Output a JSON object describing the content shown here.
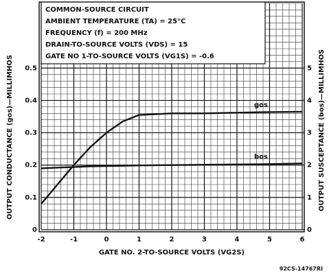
{
  "chart_data": {
    "type": "line",
    "header": [
      "COMMON-SOURCE CIRCUIT",
      "AMBIENT TEMPERATURE (TA) = 25°C",
      "FREQUENCY (f) = 200 MHz",
      "DRAIN-TO-SOURCE VOLTS (VDS) = 15",
      "GATE NO 1-TO-SOURCE VOLTS (VG1S) = -0.6"
    ],
    "x_label": "GATE NO. 2-TO-SOURCE VOLTS (VG2S)",
    "y_label": "OUTPUT CONDUCTANCE (gos)—MILLIMHOS",
    "y2_label": "OUTPUT SUSCEPTANCE (bos)—MILLIMHOS",
    "code": "92CS-14767RI",
    "x": [
      -2,
      -1.5,
      -1,
      -0.5,
      0,
      0.5,
      1,
      2,
      3,
      4,
      5,
      6
    ],
    "series": [
      {
        "name": "gos",
        "color": "#111111",
        "values": [
          0.08,
          0.14,
          0.2,
          0.255,
          0.3,
          0.335,
          0.355,
          0.36,
          0.36,
          0.362,
          0.364,
          0.365
        ]
      },
      {
        "name": "bos",
        "color": "#111111",
        "axis": "y2",
        "values": [
          1.9,
          1.92,
          1.94,
          1.96,
          1.97,
          1.98,
          1.99,
          2.0,
          2.01,
          2.02,
          2.03,
          2.05
        ]
      }
    ],
    "xlim": [
      -2,
      6
    ],
    "xticks": [
      -2,
      -1,
      0,
      1,
      2,
      3,
      4,
      5,
      6
    ],
    "ylim": [
      0,
      0.7
    ],
    "yticks": [
      0,
      0.1,
      0.2,
      0.3,
      0.4,
      0.5
    ],
    "y2lim": [
      0,
      7
    ],
    "y2ticks": [
      0,
      1,
      2,
      3,
      4,
      5
    ],
    "grid": true
  }
}
